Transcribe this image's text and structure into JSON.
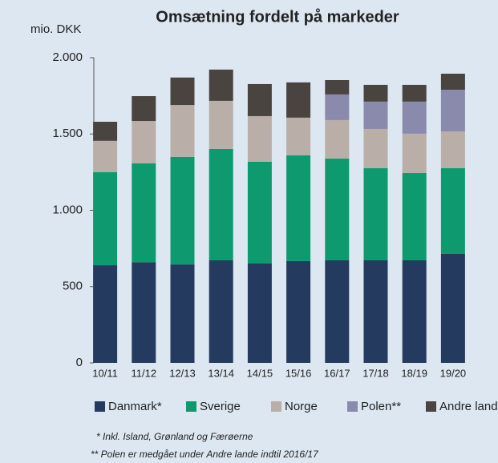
{
  "chart_data": {
    "type": "stacked_bar",
    "title": "Omsætning fordelt på markeder",
    "y_label": "mio. DKK",
    "categories": [
      "10/11",
      "11/12",
      "12/13",
      "13/14",
      "14/15",
      "15/16",
      "16/17",
      "17/18",
      "18/19",
      "19/20"
    ],
    "series": [
      {
        "name": "Danmark*",
        "color": "#243a5e",
        "values": [
          640,
          660,
          645,
          672,
          651,
          667,
          672,
          672,
          672,
          714
        ]
      },
      {
        "name": "Sverige",
        "color": "#0e9a6e",
        "values": [
          610,
          647,
          705,
          730,
          667,
          693,
          667,
          604,
          572,
          562
        ]
      },
      {
        "name": "Norge",
        "color": "#b9aea8",
        "values": [
          205,
          278,
          340,
          315,
          299,
          247,
          252,
          257,
          258,
          241
        ]
      },
      {
        "name": "Polen**",
        "color": "#8a8aac",
        "values": [
          null,
          null,
          null,
          null,
          null,
          null,
          168,
          179,
          210,
          273
        ]
      },
      {
        "name": "Andre lande",
        "color": "#4a4441",
        "values": [
          125,
          163,
          180,
          205,
          210,
          231,
          94,
          110,
          110,
          105
        ]
      }
    ],
    "ylim": [
      0,
      2000
    ],
    "yticks": [
      0,
      500,
      {
        "value": 1000,
        "label": "1.000"
      },
      {
        "value": 1500,
        "label": "1.500"
      },
      {
        "value": 2000,
        "label": "2.000"
      }
    ],
    "footnotes": [
      "* Inkl. Island, Grønland og Færøerne",
      "** Polen er medgået under Andre lande indtil 2016/17"
    ]
  }
}
